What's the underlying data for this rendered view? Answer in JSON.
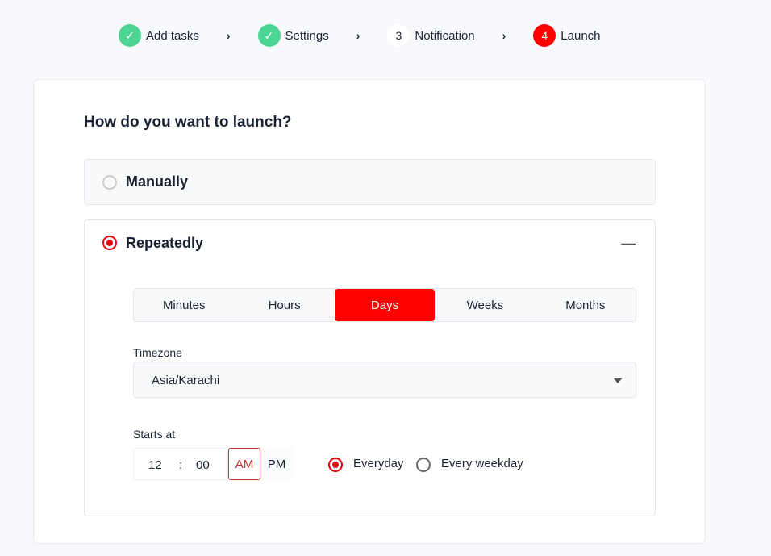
{
  "steps": [
    {
      "label": "Add tasks",
      "state": "done"
    },
    {
      "label": "Settings",
      "state": "done"
    },
    {
      "number": "3",
      "label": "Notification",
      "state": "pending"
    },
    {
      "number": "4",
      "label": "Launch",
      "state": "active"
    }
  ],
  "title": "How do you want to launch?",
  "options": {
    "manual": "Manually",
    "repeat": "Repeatedly",
    "selected": "Repeatedly"
  },
  "tabs": [
    "Minutes",
    "Hours",
    "Days",
    "Weeks",
    "Months"
  ],
  "selected_tab": "Days",
  "timezone": {
    "label": "Timezone",
    "value": "Asia/Karachi"
  },
  "starts": {
    "label": "Starts at",
    "hour": "12",
    "sep": ":",
    "minute": "00",
    "am": "AM",
    "pm": "PM",
    "selected_period": "AM"
  },
  "frequency": {
    "everyday": "Everyday",
    "weekday": "Every weekday",
    "selected": "Everyday"
  },
  "colors": {
    "accent": "#ff0000",
    "done": "#4cd493"
  }
}
